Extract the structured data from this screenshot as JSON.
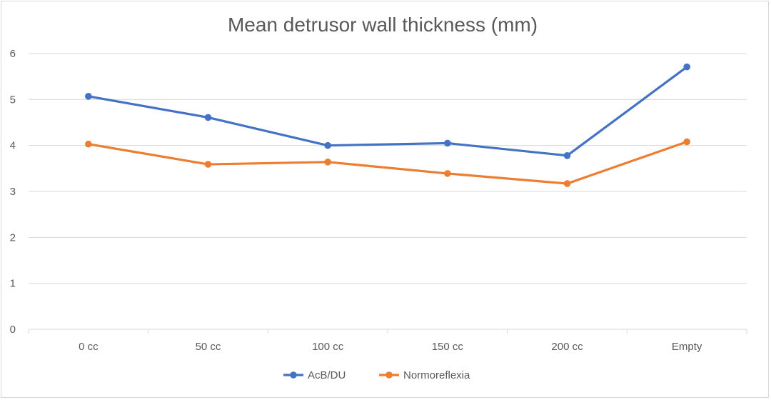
{
  "chart_data": {
    "type": "line",
    "title": "Mean detrusor wall thickness (mm)",
    "xlabel": "",
    "ylabel": "",
    "categories": [
      "0 cc",
      "50 cc",
      "100 cc",
      "150 cc",
      "200 cc",
      "Empty"
    ],
    "ylim": [
      0,
      6
    ],
    "yticks": [
      "0",
      "1",
      "2",
      "3",
      "4",
      "5",
      "6"
    ],
    "grid": true,
    "legend_position": "bottom",
    "series": [
      {
        "name": "AcB/DU",
        "color": "#4472c4",
        "values": [
          5.07,
          4.61,
          4.0,
          4.05,
          3.78,
          5.71
        ]
      },
      {
        "name": "Normoreflexia",
        "color": "#ed7d31",
        "values": [
          4.03,
          3.59,
          3.64,
          3.39,
          3.17,
          4.08
        ]
      }
    ]
  }
}
